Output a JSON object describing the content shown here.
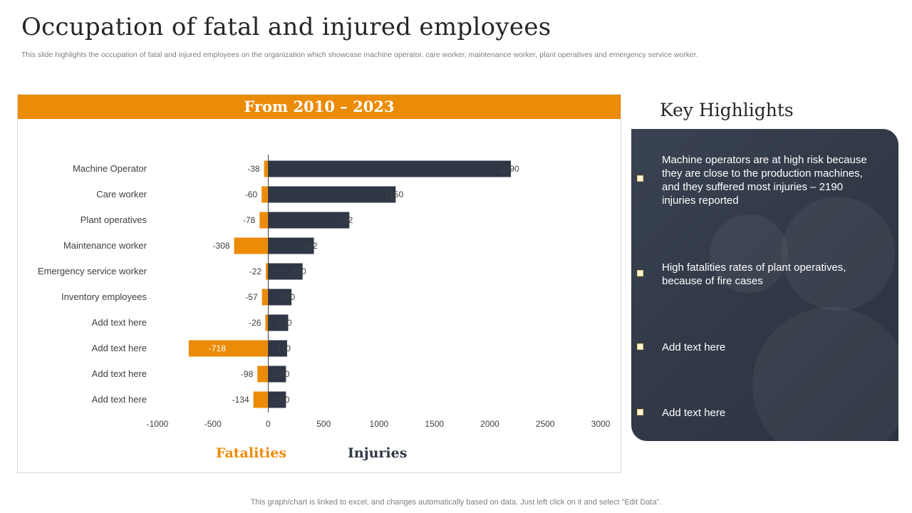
{
  "title": "Occupation of fatal and injured employees",
  "subtitle": "This slide highlights the occupation of fatal and injured employees on the organization which showcase machine operator, care worker, maintenance worker, plant operatives and emergency service worker.",
  "chart_header": "From 2010 – 2023",
  "chart_data": {
    "type": "bar",
    "orientation": "horizontal",
    "categories": [
      "Machine Operator",
      "Care worker",
      "Plant operatives",
      "Maintenance worker",
      "Emergency service worker",
      "Inventory employees",
      "Add text here",
      "Add text here",
      "Add text here",
      "Add text here"
    ],
    "series": [
      {
        "name": "Fatalities",
        "values": [
          -38,
          -60,
          -78,
          -308,
          -22,
          -57,
          -26,
          -718,
          -98,
          -134
        ]
      },
      {
        "name": "Injuries",
        "values": [
          2190,
          1150,
          732,
          412,
          310,
          210,
          180,
          170,
          160,
          160
        ]
      }
    ],
    "xticks": [
      -1000,
      -500,
      0,
      500,
      1000,
      1500,
      2000,
      2500,
      3000
    ],
    "xlim": [
      -1000,
      3000
    ],
    "grid": false,
    "legend": "bottom"
  },
  "colors": {
    "fatalities": "#ec8b07",
    "injuries": "#2f3746",
    "accent": "#ec8b07"
  },
  "key_highlights": {
    "title": "Key Highlights",
    "items": [
      "Machine operators are at high risk because they are close to the production machines, and they suffered most injuries – 2190 injuries reported",
      "High fatalities rates of plant operatives, because of fire cases",
      "Add text here",
      "Add text here"
    ]
  },
  "footer": "This graph/chart is linked to excel,  and changes automatically based on data. Just left click on it and select “Edit Data”."
}
